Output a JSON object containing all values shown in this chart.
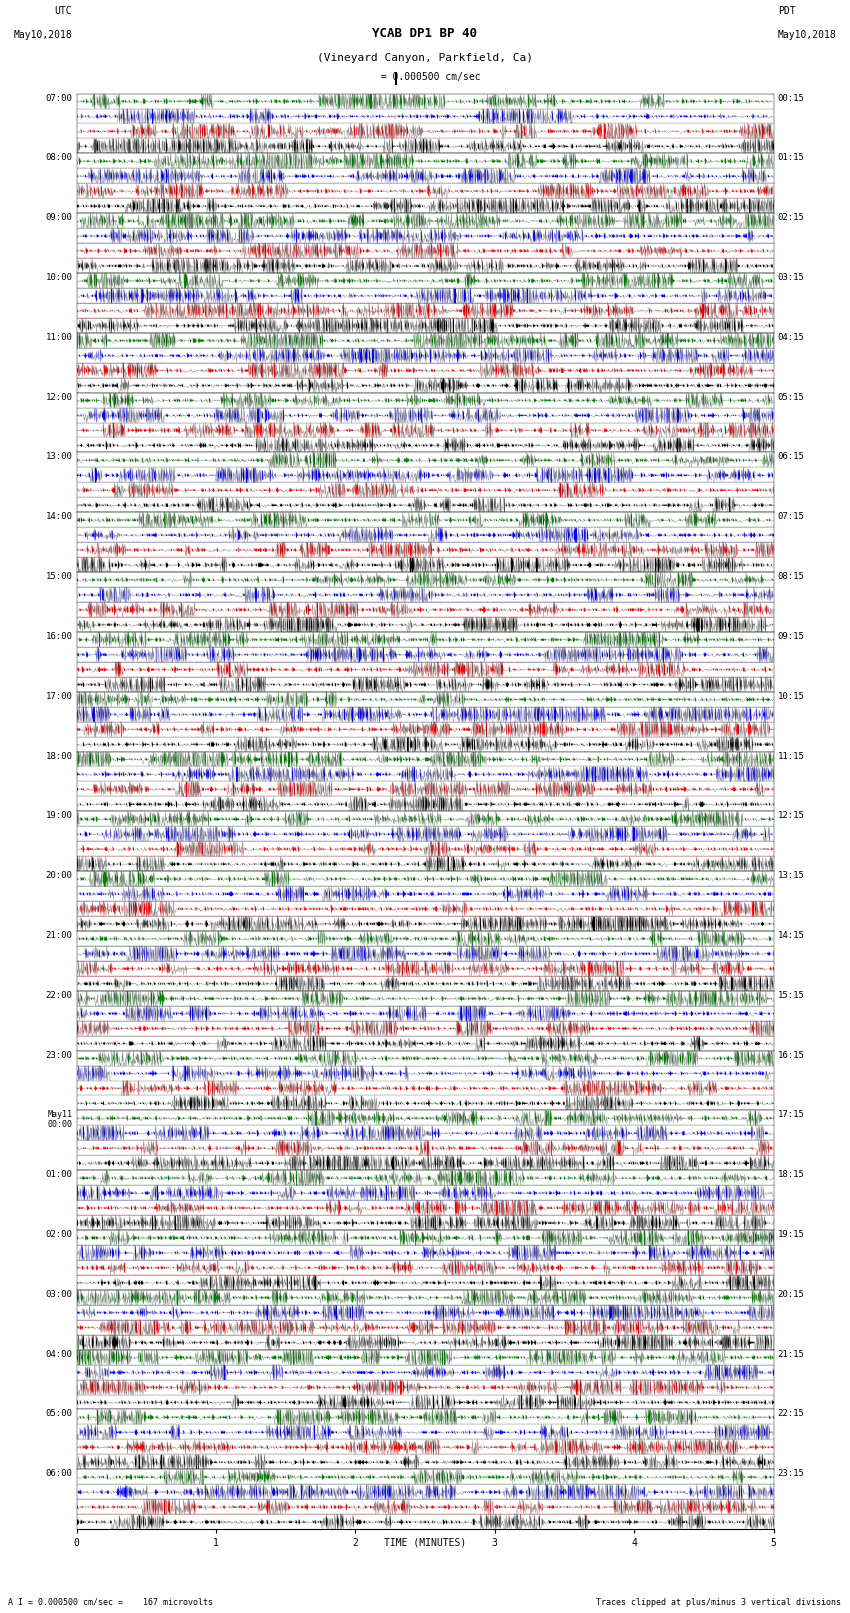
{
  "title_line1": "YCAB DP1 BP 40",
  "title_line2": "(Vineyard Canyon, Parkfield, Ca)",
  "scale_label": "I = 0.000500 cm/sec",
  "utc_label": "UTC",
  "utc_date": "May10,2018",
  "pdt_label": "PDT",
  "pdt_date": "May10,2018",
  "bottom_label": "A I = 0.000500 cm/sec =    167 microvolts",
  "bottom_right": "Traces clipped at plus/minus 3 vertical divisions",
  "xlabel": "TIME (MINUTES)",
  "left_times": [
    "07:00",
    "08:00",
    "09:00",
    "10:00",
    "11:00",
    "12:00",
    "13:00",
    "14:00",
    "15:00",
    "16:00",
    "17:00",
    "18:00",
    "19:00",
    "20:00",
    "21:00",
    "22:00",
    "23:00",
    "May11\n00:00",
    "01:00",
    "02:00",
    "03:00",
    "04:00",
    "05:00",
    "06:00"
  ],
  "right_times": [
    "00:15",
    "01:15",
    "02:15",
    "03:15",
    "04:15",
    "05:15",
    "06:15",
    "07:15",
    "08:15",
    "09:15",
    "10:15",
    "11:15",
    "12:15",
    "13:15",
    "14:15",
    "15:15",
    "16:15",
    "17:15",
    "18:15",
    "19:15",
    "20:15",
    "21:15",
    "22:15",
    "23:15"
  ],
  "n_rows": 24,
  "n_samples": 1800,
  "bg_color": "#ffffff",
  "trace_colors": [
    "#000000",
    "#ff0000",
    "#0000ff",
    "#008000"
  ],
  "fig_width": 8.5,
  "fig_height": 16.13,
  "dpi": 100
}
